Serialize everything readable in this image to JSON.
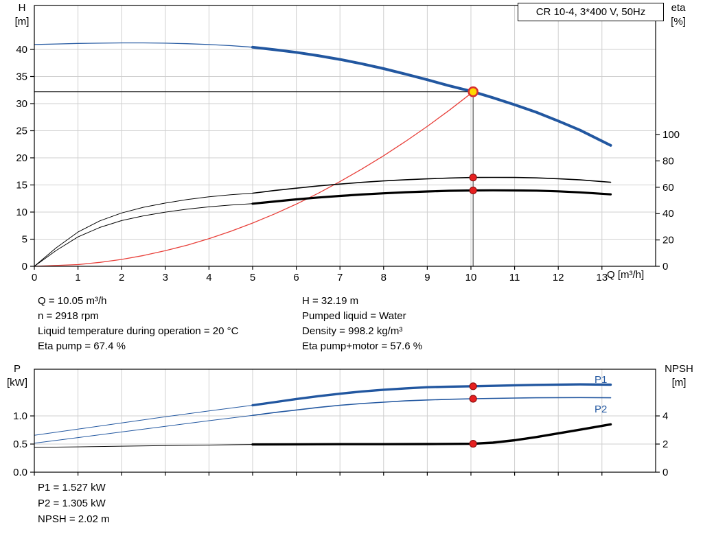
{
  "colors": {
    "curve_blue": "#2257a0",
    "curve_black": "#000000",
    "curve_red": "#e8403a",
    "dot_red": "#e62020",
    "duty_yellow": "#ffd800",
    "grid": "#cfcfcf"
  },
  "axis_labels": {
    "h_top": "H",
    "h_unit": "[m]",
    "eta_top": "eta",
    "eta_unit": "[%]",
    "q_label": "Q [m³/h]",
    "p_top": "P",
    "p_unit": "[kW]",
    "npsh_top": "NPSH",
    "npsh_unit": "[m]"
  },
  "info_block": {
    "col1": [
      "Q = 10.05 m³/h",
      "n = 2918 rpm",
      "Liquid temperature during operation = 20 °C",
      "Eta pump = 67.4 %"
    ],
    "col2": [
      "H = 32.19 m",
      "Pumped liquid = Water",
      "Density = 998.2 kg/m³",
      "Eta pump+motor = 57.6 %"
    ]
  },
  "result_block": [
    "P1 = 1.527 kW",
    "P2 = 1.305 kW",
    "NPSH = 2.02 m"
  ],
  "chart_data": [
    {
      "type": "line",
      "name": "qh-eta-chart",
      "title": "CR 10-4, 3*400 V, 50Hz",
      "x_axis": {
        "label": "Q [m³/h]",
        "range": [
          0,
          14.23
        ],
        "ticks": [
          0,
          1,
          2,
          3,
          4,
          5,
          6,
          7,
          8,
          9,
          10,
          11,
          12,
          13
        ],
        "show_tick_labels": true
      },
      "y_left": {
        "label": "H [m]",
        "range": [
          0,
          48.1
        ],
        "ticks": [
          0,
          5,
          10,
          15,
          20,
          25,
          30,
          35,
          40
        ],
        "tick_labels": [
          "0",
          "5",
          "10",
          "15",
          "20",
          "25",
          "30",
          "35",
          "40"
        ]
      },
      "y_right": {
        "label": "eta [%]",
        "range": [
          0,
          198
        ],
        "ticks": [
          0,
          20,
          40,
          60,
          80,
          100
        ],
        "tick_labels": [
          "0",
          "20",
          "40",
          "60",
          "80",
          "100"
        ]
      },
      "grid": true,
      "legend_position": "none",
      "duty_point": {
        "q": 10.05,
        "h": 32.19,
        "eta_pump": 67.4,
        "eta_pump_motor": 57.6
      },
      "series": [
        {
          "name": "duty-head-guide",
          "axis": "left",
          "color": "#1a1a1a",
          "width": 1.2,
          "x": [
            0,
            10.05
          ],
          "y": [
            32.19,
            32.19
          ]
        },
        {
          "name": "duty-flow-guide",
          "axis": "left",
          "color": "#6e6e6e",
          "width": 1.4,
          "x": [
            10.05,
            10.05
          ],
          "y": [
            0,
            32.19
          ]
        },
        {
          "name": "system-curve",
          "axis": "left",
          "color": "#e8403a",
          "width": 1.3,
          "x": [
            0,
            1,
            1.5,
            2,
            2.5,
            3,
            3.5,
            4,
            4.5,
            5,
            5.5,
            6,
            6.5,
            7,
            7.5,
            8,
            8.5,
            9,
            9.5,
            10.05
          ],
          "y": [
            0,
            0.32,
            0.72,
            1.27,
            1.99,
            2.87,
            3.9,
            5.1,
            6.45,
            7.97,
            9.64,
            11.47,
            13.46,
            15.62,
            17.93,
            20.39,
            23.02,
            25.81,
            28.76,
            32.19
          ]
        },
        {
          "name": "eta-pump-curve-extended",
          "axis": "right",
          "color": "#000000",
          "width": 1,
          "x": [
            0,
            0.5,
            1,
            1.5,
            2,
            2.5,
            3,
            3.5,
            4,
            4.5,
            5
          ],
          "y": [
            0,
            14,
            26,
            34.5,
            40.5,
            44.8,
            48,
            50.7,
            52.8,
            54.3,
            55.5
          ]
        },
        {
          "name": "eta-pump-curve",
          "axis": "right",
          "color": "#000000",
          "width": 1.6,
          "x": [
            5,
            5.5,
            6,
            6.5,
            7,
            7.5,
            8,
            8.5,
            9,
            9.5,
            10.05,
            10.5,
            11,
            11.5,
            12,
            12.5,
            13.2
          ],
          "y": [
            55.5,
            57.5,
            59.3,
            61,
            62.4,
            63.7,
            64.8,
            65.7,
            66.4,
            67,
            67.4,
            67.5,
            67.4,
            67.1,
            66.5,
            65.6,
            63.8
          ]
        },
        {
          "name": "eta-pump-motor-curve-extended",
          "axis": "right",
          "color": "#000000",
          "width": 1,
          "x": [
            0,
            0.5,
            1,
            1.5,
            2,
            2.5,
            3,
            3.5,
            4,
            4.5,
            5
          ],
          "y": [
            0,
            12,
            22.3,
            29.5,
            34.7,
            38.3,
            41.1,
            43.4,
            45.1,
            46.5,
            47.5
          ]
        },
        {
          "name": "eta-pump-motor-curve",
          "axis": "right",
          "color": "#000000",
          "width": 3.2,
          "x": [
            5,
            5.5,
            6,
            6.5,
            7,
            7.5,
            8,
            8.5,
            9,
            9.5,
            10.05,
            10.5,
            11,
            11.5,
            12,
            12.5,
            13.2
          ],
          "y": [
            47.5,
            49.2,
            50.8,
            52.2,
            53.4,
            54.5,
            55.4,
            56.2,
            56.8,
            57.3,
            57.6,
            57.7,
            57.6,
            57.4,
            56.9,
            56.1,
            54.6
          ]
        },
        {
          "name": "head-curve-extended",
          "axis": "left",
          "color": "#2257a0",
          "width": 1.3,
          "x": [
            0,
            0.5,
            1,
            1.5,
            2,
            2.5,
            3,
            3.5,
            4,
            4.5,
            5
          ],
          "y": [
            40.9,
            41.0,
            41.1,
            41.15,
            41.2,
            41.2,
            41.15,
            41.05,
            40.9,
            40.7,
            40.4
          ]
        },
        {
          "name": "head-curve",
          "axis": "left",
          "color": "#2257a0",
          "width": 4,
          "x": [
            5,
            5.5,
            6,
            6.5,
            7,
            7.5,
            8,
            8.5,
            9,
            9.5,
            10.05,
            10.5,
            11,
            11.5,
            12,
            12.5,
            13.2
          ],
          "y": [
            40.4,
            39.95,
            39.45,
            38.85,
            38.15,
            37.35,
            36.45,
            35.45,
            34.4,
            33.3,
            32.19,
            31.1,
            29.8,
            28.4,
            26.8,
            25.1,
            22.3
          ]
        }
      ],
      "markers": [
        {
          "name": "duty-point",
          "axis": "left",
          "x": 10.05,
          "y": 32.19,
          "r": 6.5,
          "fill": "#ffd800",
          "stroke": "#d83030",
          "stroke_width": 2.6
        },
        {
          "name": "eta-pump-duty-dot",
          "axis": "right",
          "x": 10.05,
          "y": 67.4,
          "r": 5,
          "fill": "#e62020",
          "stroke": "#8f1010",
          "stroke_width": 1.2
        },
        {
          "name": "eta-pump-motor-duty-dot",
          "axis": "right",
          "x": 10.05,
          "y": 57.6,
          "r": 5,
          "fill": "#e62020",
          "stroke": "#8f1010",
          "stroke_width": 1.2
        }
      ],
      "annotations": []
    },
    {
      "type": "line",
      "name": "power-npsh-chart",
      "title": "",
      "x_axis": {
        "label": "",
        "range": [
          0,
          14.23
        ],
        "ticks": [
          0,
          1,
          2,
          3,
          4,
          5,
          6,
          7,
          8,
          9,
          10,
          11,
          12,
          13
        ],
        "show_tick_labels": false
      },
      "y_left": {
        "label": "P [kW]",
        "range": [
          0,
          1.83
        ],
        "ticks": [
          0,
          0.5,
          1.0
        ],
        "tick_labels": [
          "0.0",
          "0.5",
          "1.0"
        ]
      },
      "y_right": {
        "label": "NPSH [m]",
        "range": [
          0,
          7.32
        ],
        "ticks": [
          0,
          2,
          4
        ],
        "tick_labels": [
          "0",
          "2",
          "4"
        ]
      },
      "grid": true,
      "legend_position": "inline-right",
      "duty_point": {
        "q": 10.05,
        "p1_kw": 1.527,
        "p2_kw": 1.305,
        "npsh_m": 2.02
      },
      "series": [
        {
          "name": "p2-curve-extended",
          "axis": "left",
          "color": "#2257a0",
          "width": 1,
          "x": [
            0,
            1,
            2,
            3,
            4,
            5
          ],
          "y": [
            0.515,
            0.615,
            0.715,
            0.815,
            0.915,
            1.01
          ]
        },
        {
          "name": "p2-curve",
          "axis": "left",
          "color": "#2257a0",
          "width": 1.6,
          "x": [
            5,
            5.5,
            6,
            6.5,
            7,
            7.5,
            8,
            8.5,
            9,
            9.5,
            10.05,
            10.5,
            11,
            11.5,
            12,
            12.5,
            13.2
          ],
          "y": [
            1.01,
            1.06,
            1.105,
            1.15,
            1.19,
            1.22,
            1.245,
            1.267,
            1.283,
            1.296,
            1.305,
            1.312,
            1.318,
            1.322,
            1.325,
            1.326,
            1.322
          ]
        },
        {
          "name": "p1-curve-extended",
          "axis": "left",
          "color": "#2257a0",
          "width": 1,
          "x": [
            0,
            1,
            2,
            3,
            4,
            5
          ],
          "y": [
            0.655,
            0.765,
            0.875,
            0.985,
            1.09,
            1.19
          ]
        },
        {
          "name": "p1-curve",
          "axis": "left",
          "color": "#2257a0",
          "width": 3.4,
          "x": [
            5,
            5.5,
            6,
            6.5,
            7,
            7.5,
            8,
            8.5,
            9,
            9.5,
            10.05,
            10.5,
            11,
            11.5,
            12,
            12.5,
            13.2
          ],
          "y": [
            1.19,
            1.245,
            1.3,
            1.35,
            1.395,
            1.435,
            1.465,
            1.49,
            1.51,
            1.52,
            1.527,
            1.535,
            1.545,
            1.552,
            1.557,
            1.56,
            1.556
          ]
        },
        {
          "name": "npsh-curve-extended",
          "axis": "right",
          "color": "#000000",
          "width": 1,
          "x": [
            0,
            1,
            2,
            3,
            4,
            5
          ],
          "y": [
            1.76,
            1.8,
            1.85,
            1.89,
            1.93,
            1.97
          ]
        },
        {
          "name": "npsh-curve",
          "axis": "right",
          "color": "#000000",
          "width": 3.4,
          "x": [
            5,
            6,
            7,
            8,
            9,
            9.5,
            10.05,
            10.5,
            11,
            11.5,
            12,
            12.5,
            13.2
          ],
          "y": [
            1.97,
            1.98,
            1.99,
            1.99,
            2.0,
            2.01,
            2.02,
            2.1,
            2.27,
            2.5,
            2.76,
            3.02,
            3.4
          ]
        }
      ],
      "markers": [
        {
          "name": "p1-duty-dot",
          "axis": "left",
          "x": 10.05,
          "y": 1.527,
          "r": 5,
          "fill": "#e62020",
          "stroke": "#8f1010",
          "stroke_width": 1.2
        },
        {
          "name": "p2-duty-dot",
          "axis": "left",
          "x": 10.05,
          "y": 1.305,
          "r": 5,
          "fill": "#e62020",
          "stroke": "#8f1010",
          "stroke_width": 1.2
        },
        {
          "name": "npsh-duty-dot",
          "axis": "right",
          "x": 10.05,
          "y": 2.02,
          "r": 5,
          "fill": "#e62020",
          "stroke": "#8f1010",
          "stroke_width": 1.2
        }
      ],
      "annotations": [
        {
          "name": "p1-curve-label",
          "text": "P1",
          "axis": "left",
          "x": 12.83,
          "y": 1.585,
          "color": "#2257a0"
        },
        {
          "name": "p2-curve-label",
          "text": "P2",
          "axis": "left",
          "x": 12.83,
          "y": 1.06,
          "color": "#2257a0"
        }
      ]
    }
  ]
}
